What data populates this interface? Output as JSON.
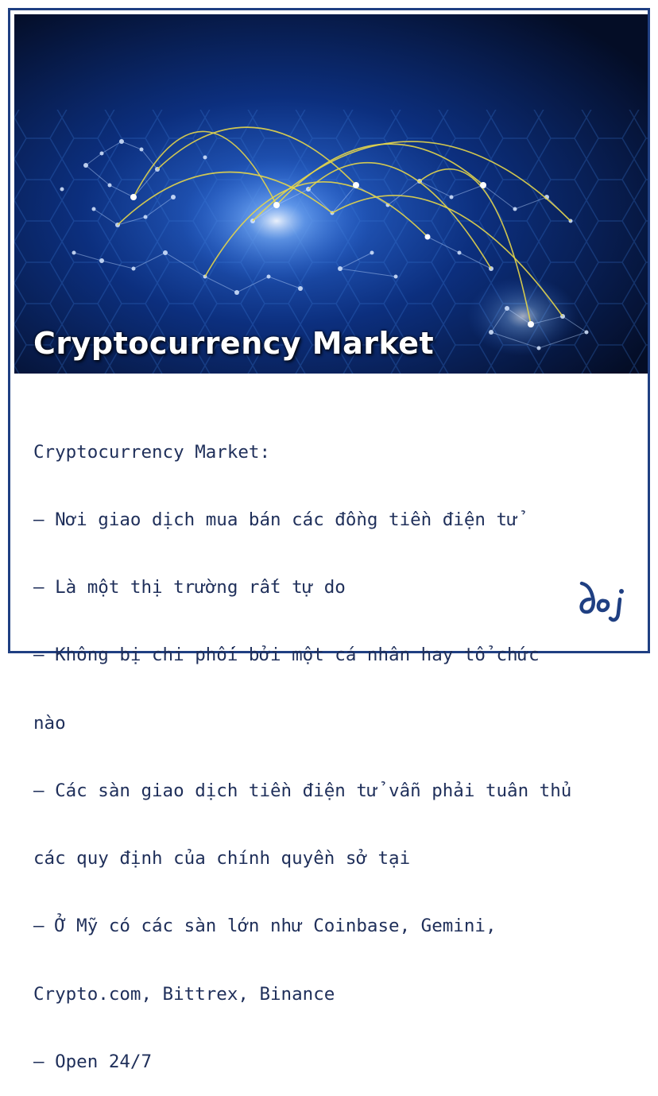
{
  "hero": {
    "title": "Cryptocurrency Market"
  },
  "content": {
    "lines": [
      "Cryptocurrency Market:",
      "– Nơi giao dịch mua bán các đồng tiền điện tử",
      "– Là một thị trường rất tự do",
      "– Không bị chi phối bởi một cá nhân hay tổ chức",
      "nào",
      "– Các sàn giao dịch tiền điện tử vẫn phải tuân thủ",
      "các quy định của chính quyền sở tại",
      "– Ở Mỹ có các sàn lớn như Coinbase, Gemini,",
      "Crypto.com, Bittrex, Binance",
      "– Open 24/7"
    ]
  },
  "logo": {
    "text": "doj"
  },
  "colors": {
    "frame": "#1f3f82",
    "text": "#1f2f5a",
    "hero_bg": "#061433",
    "arc": "#e6d64a"
  }
}
